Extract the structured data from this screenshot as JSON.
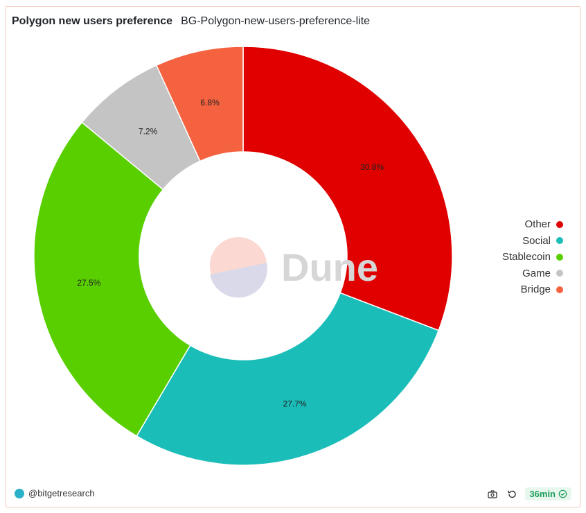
{
  "header": {
    "title": "Polygon new users preference",
    "subtitle": "BG-Polygon-new-users-preference-lite"
  },
  "watermark": {
    "text": "Dune"
  },
  "chart_data": {
    "type": "pie",
    "donut": true,
    "legend_position": "right",
    "slices": [
      {
        "name": "Other",
        "value": 30.8,
        "label": "30.8%",
        "color": "#e00000"
      },
      {
        "name": "Social",
        "value": 27.7,
        "label": "27.7%",
        "color": "#1abdb8"
      },
      {
        "name": "Stablecoin",
        "value": 27.5,
        "label": "27.5%",
        "color": "#59cf00"
      },
      {
        "name": "Game",
        "value": 7.2,
        "label": "7.2%",
        "color": "#c4c4c4"
      },
      {
        "name": "Bridge",
        "value": 6.8,
        "label": "6.8%",
        "color": "#f4623f"
      }
    ]
  },
  "footer": {
    "author": "@bitgetresearch",
    "refresh": "36min"
  }
}
